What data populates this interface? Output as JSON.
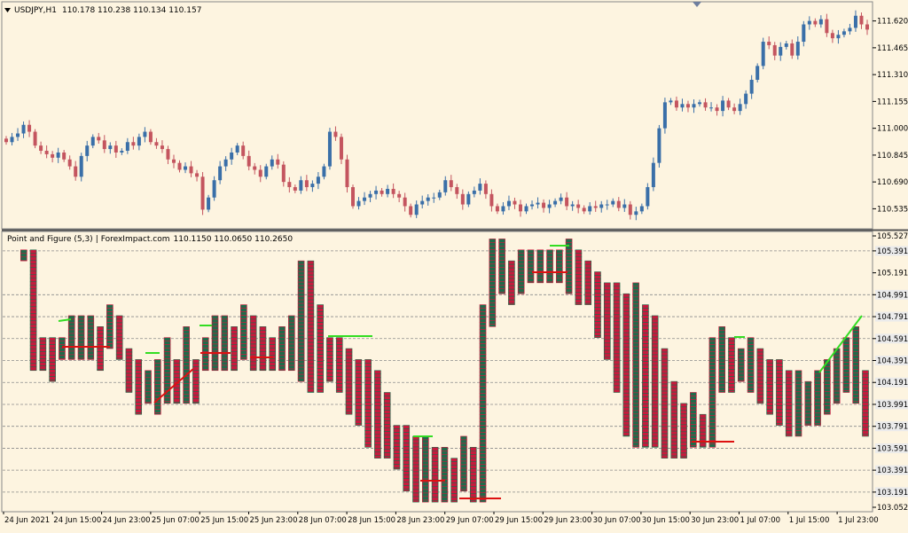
{
  "top_panel": {
    "symbol": "USDJPY,H1",
    "ohlc": "110.178 110.238 110.134 110.157",
    "price_labels": [
      "111.620",
      "111.465",
      "111.310",
      "111.155",
      "111.000",
      "110.845",
      "110.690",
      "110.535"
    ]
  },
  "bottom_panel": {
    "indicator_title": "Point and Figure (5,3)",
    "source": "ForexImpact.com",
    "values": "110.1150 110.0650 110.2650",
    "price_labels": [
      "105.5275",
      "105.3910",
      "105.1910",
      "104.9910",
      "104.7910",
      "104.5910",
      "104.3910",
      "104.1910",
      "103.9910",
      "103.7910",
      "103.5910",
      "103.3910",
      "103.1910",
      "103.0525"
    ],
    "highlighted_labels": [
      "105.3910",
      "104.9910",
      "104.7910",
      "104.5910",
      "104.3910",
      "104.1910",
      "103.9910",
      "103.7910",
      "103.5910",
      "103.3910",
      "103.1910"
    ]
  },
  "time_axis": [
    "24 Jun 2021",
    "24 Jun 15:00",
    "24 Jun 23:00",
    "25 Jun 07:00",
    "25 Jun 15:00",
    "25 Jun 23:00",
    "28 Jun 07:00",
    "28 Jun 15:00",
    "28 Jun 23:00",
    "29 Jun 07:00",
    "29 Jun 15:00",
    "29 Jun 23:00",
    "30 Jun 07:00",
    "30 Jun 15:00",
    "30 Jun 23:00",
    "1 Jul 07:00",
    "1 Jul 15:00",
    "1 Jul 23:00"
  ],
  "chart_data": [
    {
      "type": "candlestick",
      "title": "USDJPY,H1",
      "ylim": [
        110.45,
        111.7
      ],
      "series": [
        {
          "name": "USDJPY H1",
          "values": [
            110.92,
            110.95,
            110.97,
            111.02,
            110.98,
            110.9,
            110.87,
            110.85,
            110.83,
            110.86,
            110.82,
            110.78,
            110.72,
            110.84,
            110.9,
            110.95,
            110.93,
            110.88,
            110.9,
            110.86,
            110.87,
            110.92,
            110.9,
            110.95,
            110.98,
            110.92,
            110.9,
            110.88,
            110.82,
            110.8,
            110.76,
            110.78,
            110.74,
            110.72,
            110.53,
            110.6,
            110.7,
            110.78,
            110.82,
            110.86,
            110.9,
            110.84,
            110.78,
            110.76,
            110.72,
            110.78,
            110.82,
            110.79,
            110.69,
            110.66,
            110.64,
            110.7,
            110.66,
            110.68,
            110.72,
            110.78,
            110.98,
            110.95,
            110.82,
            110.66,
            110.55,
            110.58,
            110.6,
            110.62,
            110.64,
            110.62,
            110.65,
            110.62,
            110.6,
            110.55,
            110.5,
            110.56,
            110.58,
            110.6,
            110.6,
            110.63,
            110.7,
            110.66,
            110.62,
            110.56,
            110.62,
            110.64,
            110.68,
            110.62,
            110.55,
            110.52,
            110.55,
            110.58,
            110.56,
            110.52,
            110.55,
            110.56,
            110.57,
            110.54,
            110.56,
            110.58,
            110.6,
            110.55,
            110.56,
            110.54,
            110.52,
            110.55,
            110.54,
            110.56,
            110.56,
            110.58,
            110.54,
            110.56,
            110.5,
            110.52,
            110.55,
            110.66,
            110.8,
            111.0,
            111.15,
            111.16,
            111.12,
            111.14,
            111.12,
            111.14,
            111.15,
            111.12,
            111.12,
            111.1,
            111.16,
            111.12,
            111.1,
            111.14,
            111.2,
            111.28,
            111.36,
            111.5,
            111.48,
            111.42,
            111.47,
            111.49,
            111.42,
            111.5,
            111.6,
            111.62,
            111.6,
            111.63,
            111.55,
            111.52,
            111.54,
            111.56,
            111.58,
            111.65,
            111.6,
            111.57
          ]
        }
      ]
    },
    {
      "type": "point-and-figure",
      "title": "Point and Figure (5,3)",
      "box_size_note": "(5,3)",
      "ylim": [
        103.0525,
        105.5275
      ],
      "series": [
        {
          "name": "column high",
          "values": [
            105.3,
            105.4,
            105.4,
            104.6,
            104.6,
            104.6,
            104.8,
            104.8,
            104.8,
            104.7,
            104.9,
            104.8,
            104.5,
            104.4,
            104.3,
            104.4,
            104.6,
            104.4,
            104.7,
            104.4,
            104.6,
            104.8,
            104.8,
            104.7,
            104.9,
            104.8,
            104.7,
            104.6,
            104.7,
            104.8,
            105.3,
            105.3,
            104.9,
            104.6,
            104.6,
            104.5,
            104.4,
            104.4,
            104.3,
            104.1,
            103.8,
            103.8,
            103.7,
            103.7,
            103.6,
            103.6,
            103.5,
            103.7,
            103.6,
            104.9,
            105.5,
            105.5,
            105.3,
            105.4,
            105.4,
            105.4,
            105.4,
            105.4,
            105.5,
            105.4,
            105.3,
            105.2,
            105.1,
            105.1,
            105.0,
            105.1,
            104.9,
            104.8,
            104.5,
            104.2,
            104.0,
            104.1,
            103.9,
            104.6,
            104.7,
            104.6,
            104.5,
            104.6,
            104.5,
            104.4,
            104.4,
            104.3,
            104.3,
            104.2,
            104.3,
            104.4,
            104.5,
            104.6,
            104.7,
            104.3
          ]
        },
        {
          "name": "column low",
          "values": [
            105.3,
            105.3,
            104.3,
            104.3,
            104.2,
            104.4,
            104.4,
            104.4,
            104.4,
            104.3,
            104.5,
            104.4,
            104.1,
            103.9,
            104.0,
            103.9,
            104.0,
            104.0,
            104.0,
            104.0,
            104.3,
            104.3,
            104.3,
            104.3,
            104.4,
            104.3,
            104.3,
            104.3,
            104.3,
            104.3,
            104.2,
            104.1,
            104.1,
            104.2,
            104.1,
            103.9,
            103.8,
            103.6,
            103.5,
            103.5,
            103.4,
            103.2,
            103.1,
            103.1,
            103.1,
            103.1,
            103.1,
            103.2,
            103.1,
            103.1,
            104.7,
            105.0,
            104.9,
            105.0,
            105.1,
            105.1,
            105.1,
            105.1,
            105.0,
            104.9,
            104.9,
            104.6,
            104.4,
            104.1,
            103.7,
            103.6,
            103.6,
            103.6,
            103.5,
            103.5,
            103.5,
            103.6,
            103.6,
            103.6,
            104.1,
            104.1,
            104.2,
            104.1,
            104.0,
            103.9,
            103.8,
            103.7,
            103.7,
            103.8,
            103.8,
            103.9,
            104.0,
            104.1,
            104.0,
            103.7
          ]
        }
      ]
    }
  ],
  "colors": {
    "background": "#fdf4e0",
    "bull_candle": "#3a6fa8",
    "bear_candle": "#c4555f",
    "pf_x": "#1f6b4a",
    "pf_o": "#c8193d",
    "trend_up": "#33dd22",
    "trend_down": "#dd1111",
    "gridline": "#8a8a8a",
    "label_highlight": "#ebebeb"
  }
}
